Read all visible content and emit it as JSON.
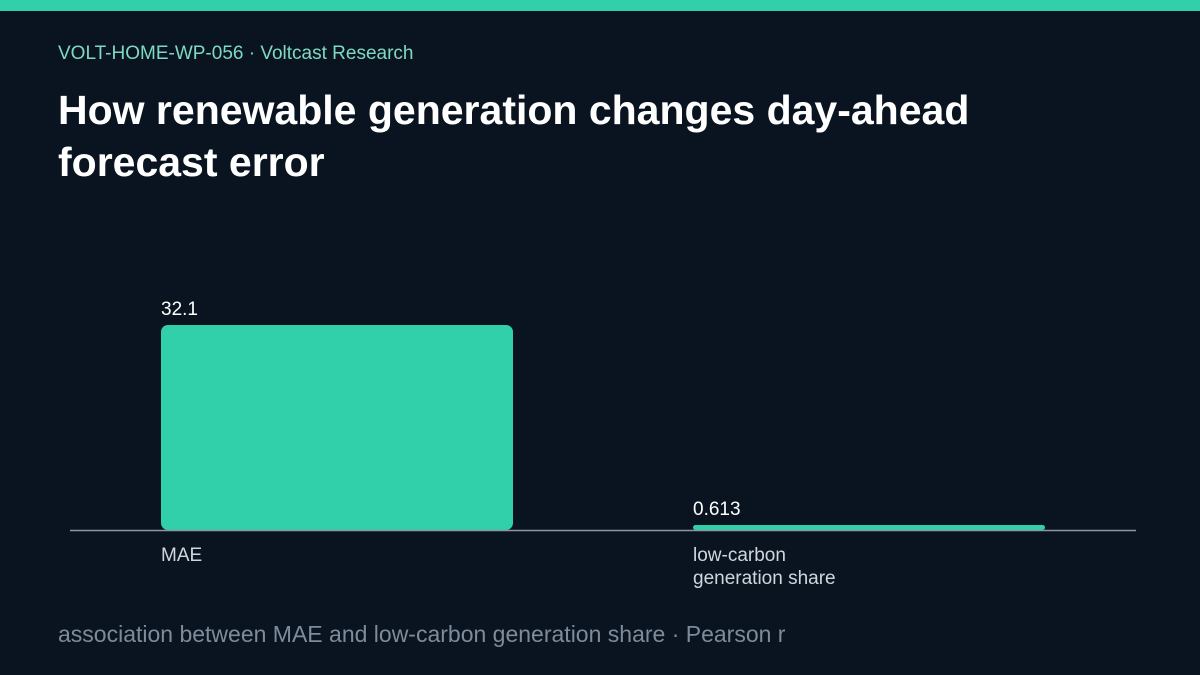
{
  "header": {
    "eyebrow": "VOLT-HOME-WP-056 · Voltcast Research",
    "title": "How renewable generation changes day-ahead forecast error"
  },
  "footer": {
    "note": "association between MAE and low-carbon generation share · Pearson r"
  },
  "colors": {
    "accent": "#31d0ab",
    "background": "#0a1420",
    "baseline": "#8a97a6"
  },
  "chart_data": {
    "type": "bar",
    "categories": [
      "MAE",
      "low-carbon generation share"
    ],
    "category_lines": [
      [
        "MAE"
      ],
      [
        "low-carbon",
        "generation share"
      ]
    ],
    "values": [
      32.1,
      0.613
    ],
    "value_labels": [
      "32.1",
      "0.613"
    ],
    "ylim": [
      0,
      32.1
    ],
    "grid": false,
    "legend": "none"
  }
}
